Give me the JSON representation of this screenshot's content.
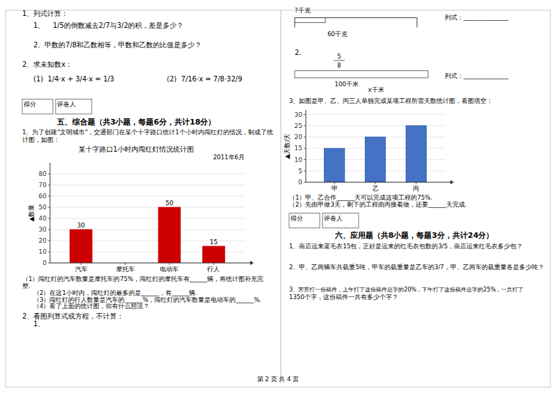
{
  "chart_data": [
    {
      "type": "bar",
      "title": "某十字路口1小时内闯红灯情况统计图",
      "subtitle": "2011年6月",
      "ylabel": "▲数量",
      "categories": [
        "汽车",
        "摩托车",
        "电动车",
        "行人"
      ],
      "values": [
        30,
        0,
        50,
        15
      ],
      "color": "#cc0000",
      "ylim": [
        0,
        90
      ],
      "yticks": [
        0,
        10,
        20,
        30,
        40,
        50,
        60,
        70,
        80
      ],
      "grid": true,
      "data_labels": true,
      "annotations": [
        "1、列式计算：",
        "1、",
        "1/5的倒数减去2/7与3/2的积，差是多少？",
        "2、甲数的7/8和乙数相等，甲数和乙数的比值是多少？",
        "2、求未知数x：",
        "(1)  1/4·x + 3/4·x = 1/3",
        "(2)  7/16·x = 7/8·32/9",
        "得分",
        "评卷人",
        "五、综合题（共3小题，每题6分，共计18分）",
        "1、为了创建\"文明城市\"，交通部门在某个十字路口统计1个小时内闯红灯的情况，制成了统",
        "计图，如图：",
        "（1）闯红灯的汽车数量是摩托车的75%，闯红灯的摩托车有______辆，将统计图补充完",
        "整.",
        "（2）在这1小时内，闯红灯的最多的是______，有______辆.",
        "（3）闯红灯的行人数量是汽车的______%，闯红灯的汽车数量是电动车的______%.",
        "（4）看了上面的统计图，你有什么想法？",
        "2、看图列算式或方程，不计算：",
        "1、"
      ]
    },
    {
      "type": "bar",
      "ylabel": "▲天数/天",
      "categories": [
        "甲",
        "乙",
        "丙"
      ],
      "values": [
        15,
        20,
        25
      ],
      "color": "#4472c4",
      "ylim": [
        0,
        32
      ],
      "yticks": [
        0,
        5,
        10,
        15,
        20,
        25,
        30
      ],
      "grid": true,
      "annotations": [
        "?千克",
        "60千克",
        "列式：_______________",
        "2.",
        "5",
        "8",
        "100千米",
        "x千米",
        "列式：_______________",
        "3、如图是甲、乙、丙三人单独完成某项工程所需天数统计图，看图填空：",
        "（1）甲、乙合作______天可以完成这项工程的75%.",
        "（2）先由甲做3天，剩下的工程由丙接着做，还要______天完成.",
        "得分",
        "评卷人",
        "六、应用题（共8小题，每题3分，共计24分）",
        "1、商店运来蓝毛衣15包，正好是运来的红毛衣包数的3/5，商店运来红毛衣多少包？",
        "2、甲、乙两辆车共载重5吨，甲车的载重量是乙车的3/7，甲、乙两车的载重量各是多少吨？",
        "3、芳芳打一份稿件，上午打了这份稿件总字的20%，下午打了这份稿件总字的25%，一共打了",
        "1350个字，这份稿件一共有多少个字？",
        "第 2 页 共 4 页"
      ]
    }
  ]
}
